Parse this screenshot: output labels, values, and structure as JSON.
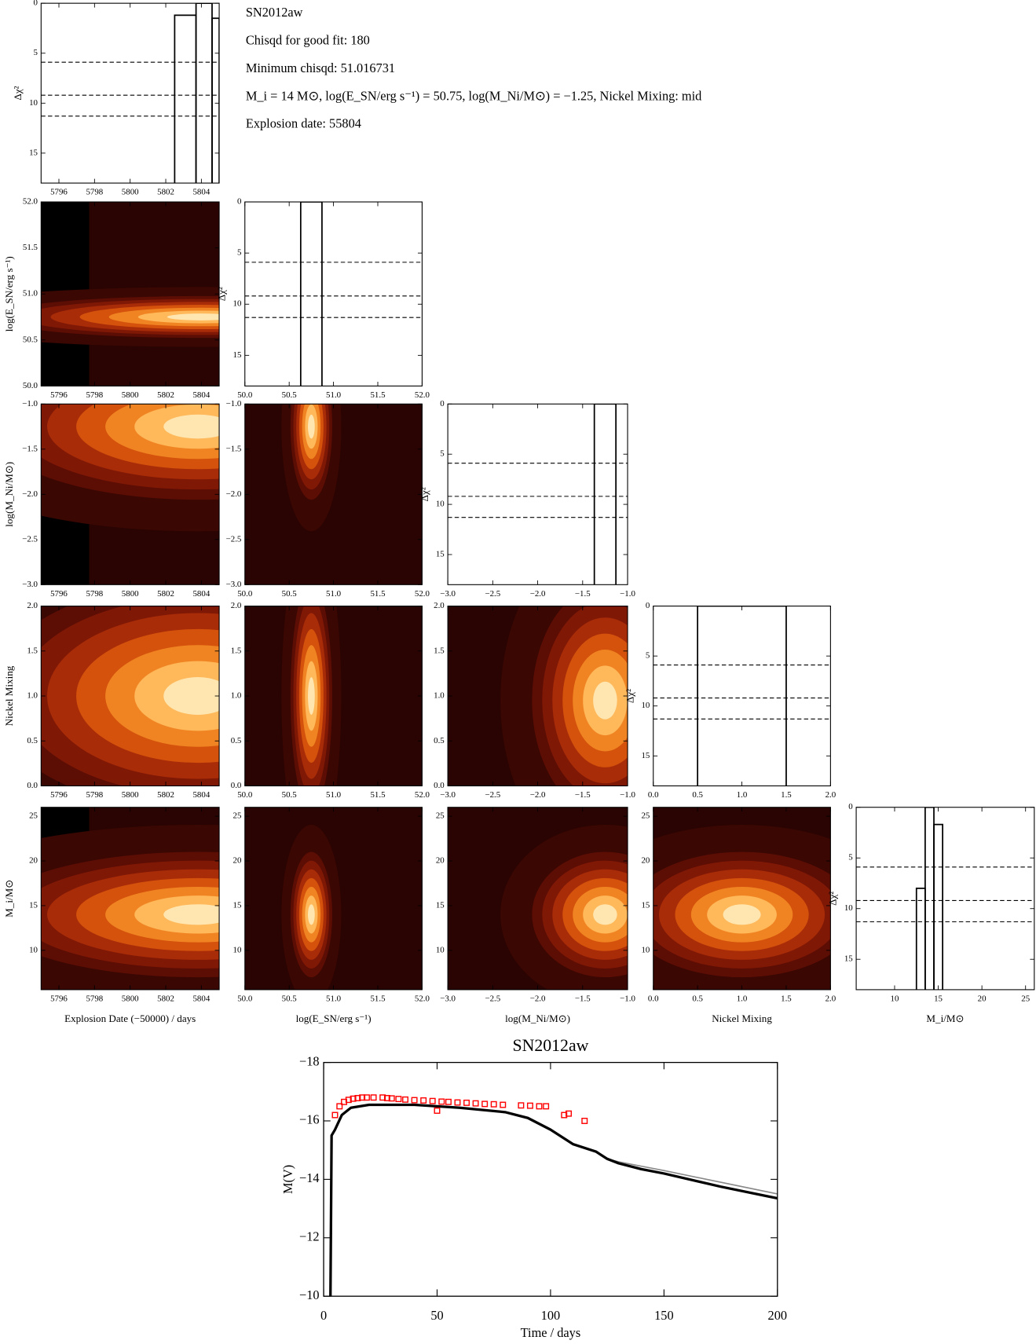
{
  "chart_data": [
    {
      "type": "corner",
      "info": [
        "SN2012aw",
        "Chisqd for good fit: 180",
        "Minimum chisqd: 51.016731",
        "M_i = 14 M⊙, log(E_SN/erg s⁻¹) = 50.75, log(M_Ni/M⊙) = −1.25, Nickel Mixing: mid",
        "Explosion date: 55804"
      ],
      "parameters": [
        {
          "label": "Explosion Date (−50000) / days",
          "short_label": null,
          "lim": [
            5795,
            5805
          ],
          "ticks": [
            5796,
            5798,
            5800,
            5802,
            5804
          ]
        },
        {
          "label": "log(E_SN/erg s⁻¹)",
          "short_label": "log(E_SN/erg s⁻¹)",
          "lim": [
            50,
            52
          ],
          "ticks": [
            {
              "value": 50,
              "label": "50.0"
            },
            50.5,
            {
              "value": 51,
              "label": "51.0"
            },
            51.5,
            {
              "value": 52,
              "label": "52.0"
            }
          ]
        },
        {
          "label": "log(M_Ni/M⊙)",
          "short_label": "log(M_Ni/M⊙)",
          "lim": [
            -3,
            -1
          ],
          "ticks": [
            {
              "value": -3,
              "label": "−3.0"
            },
            {
              "value": -2.5,
              "label": "−2.5"
            },
            {
              "value": -2,
              "label": "−2.0"
            },
            {
              "value": -1.5,
              "label": "−1.5"
            },
            {
              "value": -1,
              "label": "−1.0"
            }
          ]
        },
        {
          "label": "Nickel Mixing",
          "short_label": "Nickel Mixing",
          "lim": [
            0,
            2
          ],
          "ticks": [
            {
              "value": 0,
              "label": "0.0"
            },
            0.5,
            {
              "value": 1,
              "label": "1.0"
            },
            1.5,
            {
              "value": 2,
              "label": "2.0"
            }
          ]
        },
        {
          "label": "M_i/M⊙",
          "short_label": "M_i/M⊙",
          "lim": [
            5.6,
            26
          ],
          "ticks": [
            10,
            15,
            20,
            25
          ]
        }
      ],
      "profile_label": "Δχ²",
      "profile_ylim": [
        0,
        18
      ],
      "profile_inverted": true,
      "profile_yticks": [
        0,
        5,
        10,
        15
      ],
      "thresholds": [
        5.9,
        9.2,
        11.3
      ],
      "profiles": [
        {
          "bins": [
            5802.5,
            5803.7,
            5804.6,
            5805
          ],
          "values": [
            1.2,
            0,
            1.5
          ]
        },
        {
          "bins": [
            50.63,
            50.87
          ],
          "values": [
            0
          ]
        },
        {
          "bins": [
            -1.37,
            -1.13
          ],
          "values": [
            0
          ]
        },
        {
          "bins": [
            0.5,
            1.5
          ],
          "values": [
            0
          ]
        },
        {
          "bins": [
            12.5,
            13.5,
            14.5,
            15.5
          ],
          "values": [
            8.0,
            0,
            1.7
          ]
        }
      ],
      "contours": [
        [],
        [
          [
            5804,
            50.75
          ]
        ],
        [
          [
            5803.8,
            -1.25
          ],
          [
            50.75,
            -1.25
          ]
        ],
        [
          [
            5803.8,
            1.0
          ],
          [
            50.75,
            1.0
          ],
          [
            -1.25,
            0.95
          ]
        ],
        [
          [
            5803.8,
            14
          ],
          [
            50.75,
            14
          ],
          [
            -1.25,
            14
          ],
          [
            1.0,
            14
          ]
        ]
      ],
      "contour_colors": [
        "#3a0703",
        "#5c0d04",
        "#801806",
        "#a82c08",
        "#d4520c",
        "#f08422",
        "#ffb85a",
        "#ffe6b0"
      ]
    },
    {
      "type": "line",
      "title": "SN2012aw",
      "xlabel": "Time / days",
      "ylabel": "M(V)",
      "xlim": [
        0,
        200
      ],
      "ylim": [
        -10,
        -18
      ],
      "xticks": [
        0,
        50,
        100,
        150,
        200
      ],
      "yticks": [
        {
          "value": -18,
          "label": "−18"
        },
        {
          "value": -16,
          "label": "−16"
        },
        {
          "value": -14,
          "label": "−14"
        },
        {
          "value": -12,
          "label": "−12"
        },
        {
          "value": -10,
          "label": "−10"
        }
      ],
      "series": [
        {
          "color": "#888888",
          "width": 1.5,
          "marker": null,
          "x": [
            3,
            3.5,
            5,
            8,
            12,
            20,
            40,
            60,
            80,
            90,
            100,
            110,
            120,
            125,
            130,
            140,
            150,
            175,
            200
          ],
          "values": [
            -10,
            -15.5,
            -15.7,
            -16.2,
            -16.45,
            -16.55,
            -16.55,
            -16.45,
            -16.3,
            -16.1,
            -15.7,
            -15.2,
            -14.95,
            -14.7,
            -14.6,
            -14.45,
            -14.3,
            -13.9,
            -13.5
          ]
        },
        {
          "color": "#000000",
          "width": 3,
          "marker": null,
          "x": [
            3,
            3.5,
            5,
            8,
            12,
            20,
            40,
            60,
            80,
            90,
            100,
            110,
            120,
            125,
            130,
            140,
            150,
            175,
            200
          ],
          "values": [
            -10,
            -15.5,
            -15.7,
            -16.2,
            -16.45,
            -16.55,
            -16.55,
            -16.45,
            -16.3,
            -16.1,
            -15.7,
            -15.2,
            -14.95,
            -14.7,
            -14.55,
            -14.35,
            -14.2,
            -13.75,
            -13.35
          ]
        },
        {
          "color": "#ff0000",
          "width": 0,
          "marker": "square",
          "x": [
            5,
            7,
            9,
            11,
            13,
            15,
            17,
            19,
            22,
            26,
            28,
            30,
            33,
            36,
            40,
            44,
            48,
            50,
            52,
            55,
            59,
            63,
            67,
            71,
            75,
            79,
            87,
            91,
            95,
            98,
            106,
            108,
            115
          ],
          "values": [
            -16.2,
            -16.5,
            -16.65,
            -16.72,
            -16.76,
            -16.78,
            -16.8,
            -16.8,
            -16.8,
            -16.8,
            -16.78,
            -16.77,
            -16.75,
            -16.73,
            -16.71,
            -16.7,
            -16.68,
            -16.35,
            -16.66,
            -16.65,
            -16.63,
            -16.62,
            -16.6,
            -16.58,
            -16.57,
            -16.55,
            -16.53,
            -16.52,
            -16.5,
            -16.5,
            -16.2,
            -16.25,
            -16.0
          ]
        }
      ]
    }
  ]
}
